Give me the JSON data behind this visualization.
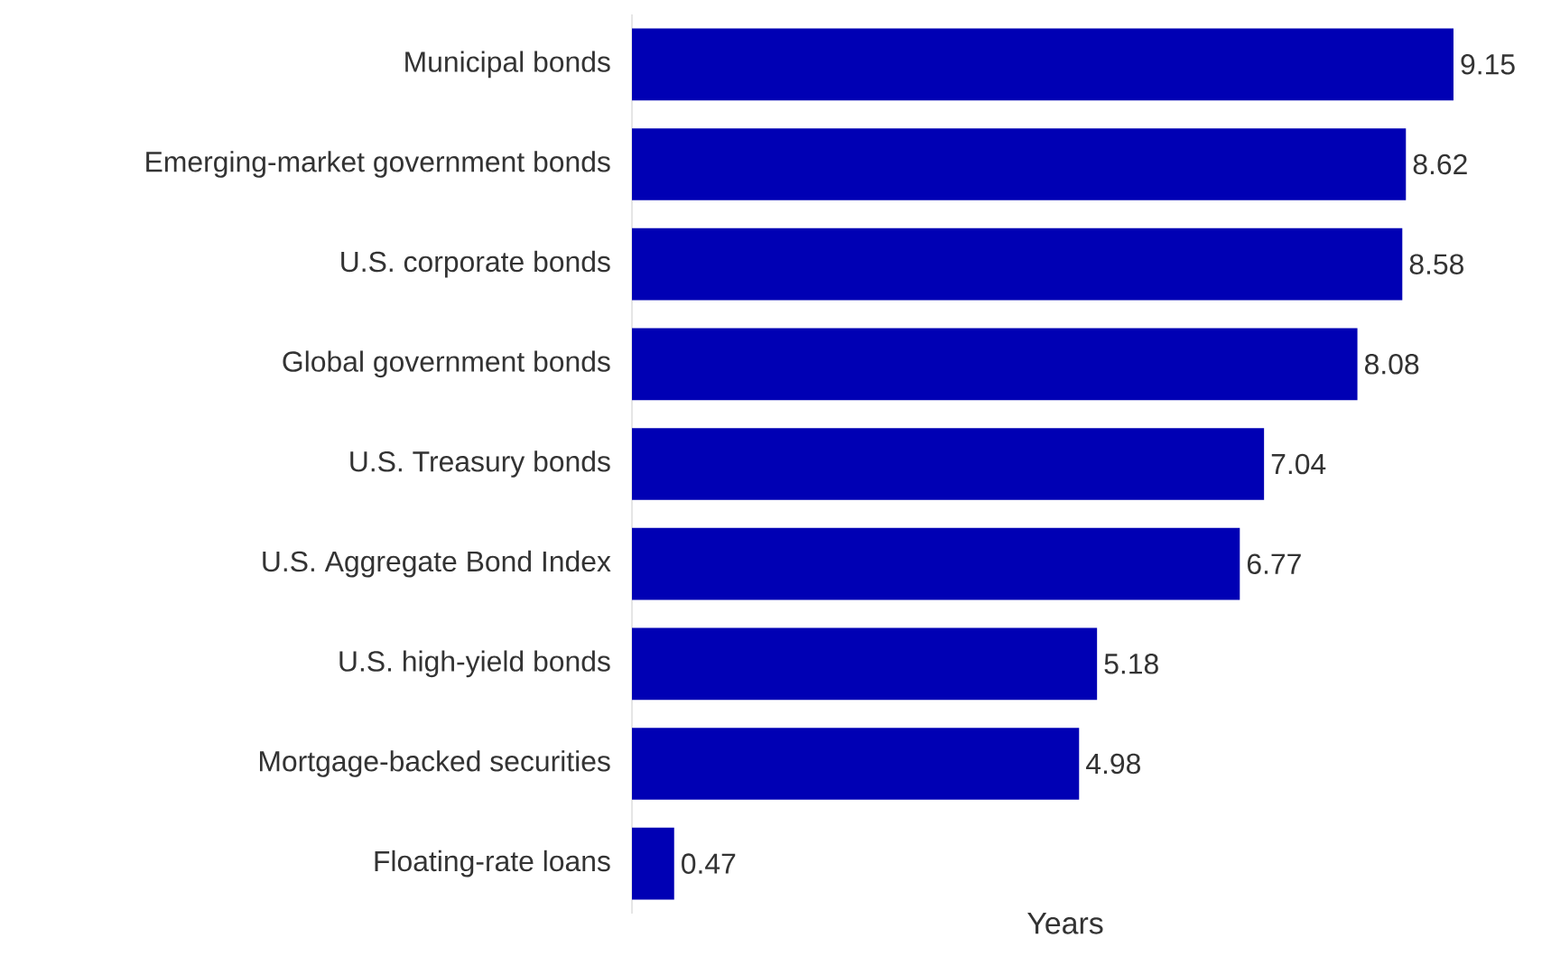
{
  "chart_data": {
    "type": "bar",
    "orientation": "horizontal",
    "xlabel": "Years",
    "categories": [
      "Municipal bonds",
      "Emerging-market government bonds",
      "U.S. corporate bonds",
      "Global government bonds",
      "U.S. Treasury bonds",
      "U.S. Aggregate Bond Index",
      "U.S. high-yield bonds",
      "Mortgage-backed securities",
      "Floating-rate loans"
    ],
    "values": [
      9.15,
      8.62,
      8.58,
      8.08,
      7.04,
      6.77,
      5.18,
      4.98,
      0.47
    ],
    "color": "#0000b4",
    "data_labels": true
  }
}
